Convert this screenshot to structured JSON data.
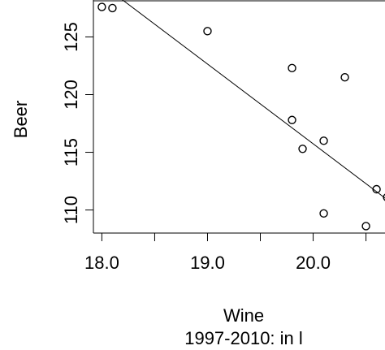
{
  "chart_data": {
    "type": "scatter",
    "xlabel": "Wine",
    "subtitle": "1997-2010: in l",
    "ylabel": "Beer",
    "x_ticks": [
      "18.0",
      "19.0",
      "20.0"
    ],
    "y_ticks": [
      "110",
      "115",
      "120",
      "125"
    ],
    "x_tick_values": [
      18.0,
      18.5,
      19.0,
      19.5,
      20.0,
      20.5
    ],
    "y_tick_values": [
      110,
      115,
      120,
      125
    ],
    "xlim": [
      17.92,
      20.68
    ],
    "ylim": [
      108.0,
      128.2
    ],
    "grid": false,
    "legend": "none",
    "points": [
      {
        "x": 18.0,
        "y": 127.6
      },
      {
        "x": 18.1,
        "y": 127.5
      },
      {
        "x": 19.0,
        "y": 125.5
      },
      {
        "x": 19.8,
        "y": 122.3
      },
      {
        "x": 19.8,
        "y": 117.8
      },
      {
        "x": 19.9,
        "y": 115.3
      },
      {
        "x": 20.1,
        "y": 116.0
      },
      {
        "x": 20.1,
        "y": 109.7
      },
      {
        "x": 20.3,
        "y": 121.5
      },
      {
        "x": 20.5,
        "y": 108.6
      },
      {
        "x": 20.6,
        "y": 111.8
      },
      {
        "x": 20.7,
        "y": 111.1
      }
    ],
    "regression_line": {
      "x": [
        17.9,
        20.7
      ],
      "y": [
        130.25,
        110.9
      ]
    },
    "colors": {
      "points": "#000000",
      "line": "#000000",
      "axes": "#000000"
    }
  }
}
